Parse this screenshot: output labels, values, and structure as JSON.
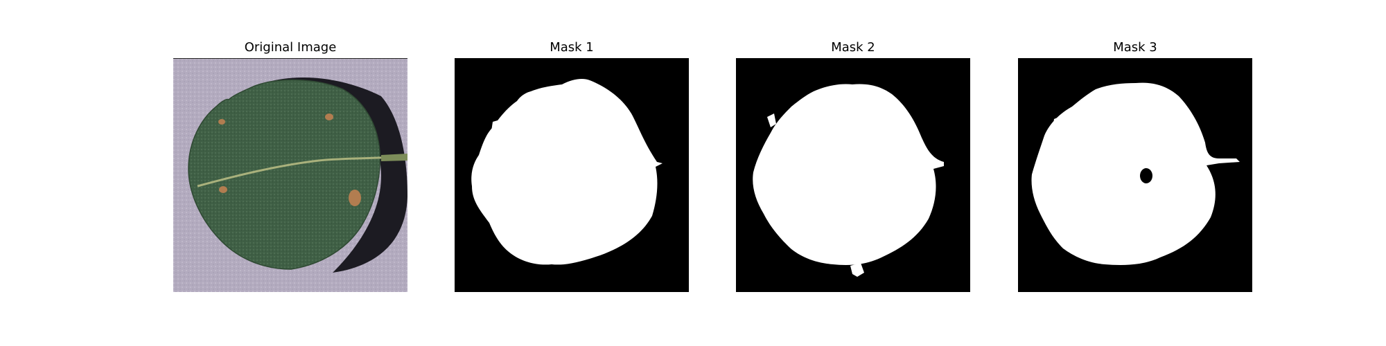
{
  "figure": {
    "panels": [
      {
        "title": "Original Image",
        "kind": "photo"
      },
      {
        "title": "Mask 1",
        "kind": "mask"
      },
      {
        "title": "Mask 2",
        "kind": "mask"
      },
      {
        "title": "Mask 3",
        "kind": "mask"
      }
    ],
    "colors": {
      "background": "#ffffff",
      "mask_background": "#000000",
      "mask_foreground": "#ffffff",
      "paper": "#b6aec2",
      "leaf": "#3e5e44",
      "leaf_vein": "#a8b07a",
      "lesion": "#b07a4e",
      "shadow": "#1a1a1f"
    }
  }
}
